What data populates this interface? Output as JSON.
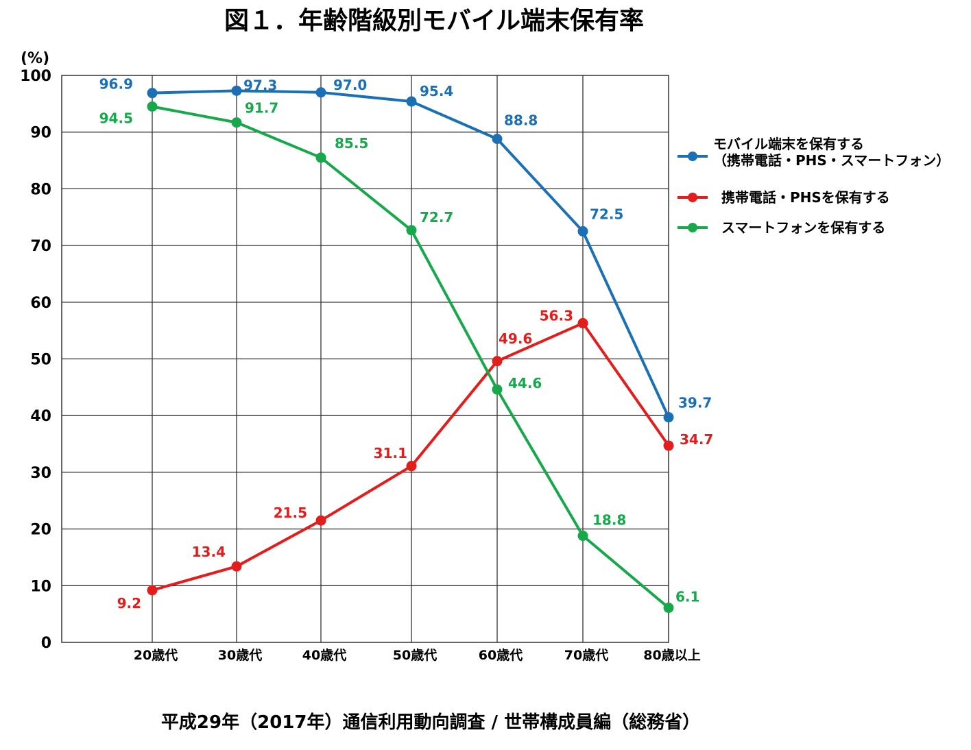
{
  "title": "図１．年齢階級別モバイル端末保有率",
  "source": "平成29年（2017年）通信利用動向調査 / 世帯構成員編（総務省）",
  "chart_data": {
    "type": "line",
    "unit_label": "(%)",
    "categories": [
      "20歳代",
      "30歳代",
      "40歳代",
      "50歳代",
      "60歳代",
      "70歳代",
      "80歳以上"
    ],
    "ylim": [
      0,
      100
    ],
    "yticks": [
      0,
      10,
      20,
      30,
      40,
      50,
      60,
      70,
      80,
      90,
      100
    ],
    "grid": true,
    "legend_position": "right",
    "series": [
      {
        "name": "モバイル端末を保有する",
        "name_line2": "（携帯電話・PHS・スマートフォン）",
        "color": "#1a6fb5",
        "values": [
          96.9,
          97.3,
          97.0,
          95.4,
          88.8,
          72.5,
          39.7
        ],
        "labels": [
          "96.9",
          "97.3",
          "97.0",
          "95.4",
          "88.8",
          "72.5",
          "39.7"
        ]
      },
      {
        "name": "携帯電話・PHSを保有する",
        "name_line2": "",
        "color": "#e31c1c",
        "values": [
          9.2,
          13.4,
          21.5,
          31.1,
          49.6,
          56.3,
          34.7
        ],
        "labels": [
          "9.2",
          "13.4",
          "21.5",
          "31.1",
          "49.6",
          "56.3",
          "34.7"
        ]
      },
      {
        "name": "スマートフォンを保有する",
        "name_line2": "",
        "color": "#17a84b",
        "values": [
          94.5,
          91.7,
          85.5,
          72.7,
          44.6,
          18.8,
          6.1
        ],
        "labels": [
          "94.5",
          "91.7",
          "85.5",
          "72.7",
          "44.6",
          "18.8",
          "6.1"
        ]
      }
    ]
  }
}
